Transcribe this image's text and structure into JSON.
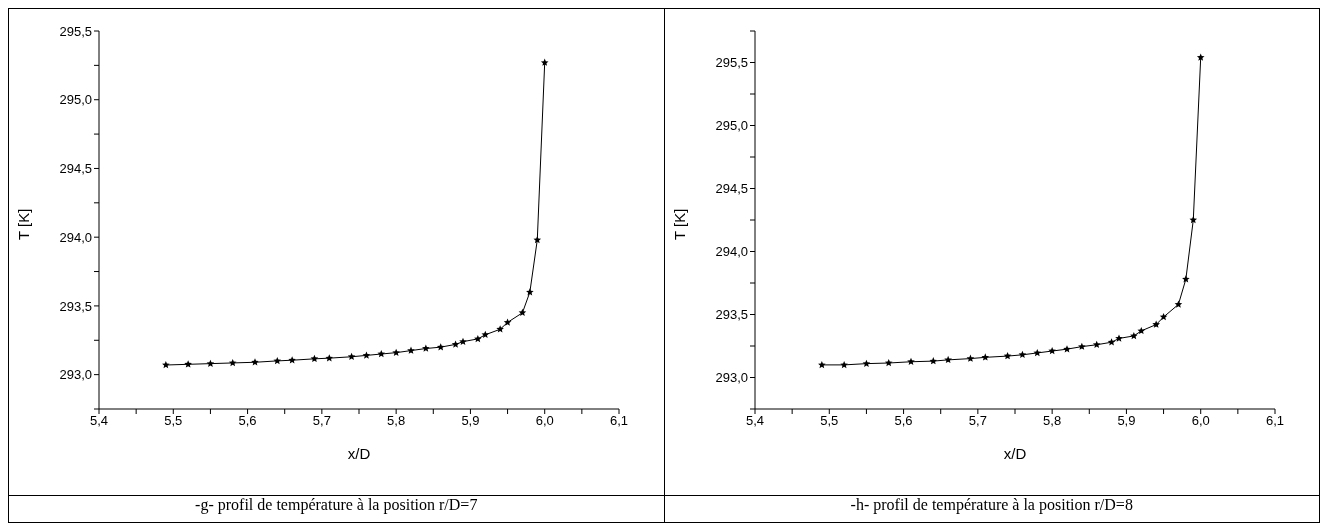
{
  "chart_data": [
    {
      "type": "line",
      "xlabel": "x/D",
      "ylabel": "T [K]",
      "marker": "star",
      "line_style": "solid",
      "grid": false,
      "legend": false,
      "annotations": [
        "-g- profil de température à la position r/D=7"
      ],
      "xlim": [
        5.4,
        6.1
      ],
      "xticks": [
        {
          "value": 5.4,
          "label": "5,4"
        },
        {
          "value": 5.45,
          "label": null
        },
        {
          "value": 5.5,
          "label": "5,5"
        },
        {
          "value": 5.55,
          "label": null
        },
        {
          "value": 5.6,
          "label": "5,6"
        },
        {
          "value": 5.65,
          "label": null
        },
        {
          "value": 5.7,
          "label": "5,7"
        },
        {
          "value": 5.75,
          "label": null
        },
        {
          "value": 5.8,
          "label": "5,8"
        },
        {
          "value": 5.85,
          "label": null
        },
        {
          "value": 5.9,
          "label": "5,9"
        },
        {
          "value": 5.95,
          "label": null
        },
        {
          "value": 6.0,
          "label": "6,0"
        },
        {
          "value": 6.05,
          "label": null
        },
        {
          "value": 6.1,
          "label": "6,1"
        }
      ],
      "ylim": [
        292.75,
        295.5
      ],
      "yticks": [
        {
          "value": 292.75,
          "label": null
        },
        {
          "value": 293.0,
          "label": "293,0"
        },
        {
          "value": 293.25,
          "label": null
        },
        {
          "value": 293.5,
          "label": "293,5"
        },
        {
          "value": 293.75,
          "label": null
        },
        {
          "value": 294.0,
          "label": "294,0"
        },
        {
          "value": 294.25,
          "label": null
        },
        {
          "value": 294.5,
          "label": "294,5"
        },
        {
          "value": 294.75,
          "label": null
        },
        {
          "value": 295.0,
          "label": "295,0"
        },
        {
          "value": 295.25,
          "label": null
        },
        {
          "value": 295.5,
          "label": "295,5"
        }
      ],
      "x": [
        5.49,
        5.52,
        5.55,
        5.58,
        5.61,
        5.64,
        5.66,
        5.69,
        5.71,
        5.74,
        5.76,
        5.78,
        5.8,
        5.82,
        5.84,
        5.86,
        5.88,
        5.89,
        5.91,
        5.92,
        5.94,
        5.95,
        5.97,
        5.98,
        5.99,
        6.0
      ],
      "series": [
        {
          "color": "#000000",
          "values": [
            293.07,
            293.075,
            293.08,
            293.085,
            293.09,
            293.1,
            293.105,
            293.115,
            293.12,
            293.13,
            293.14,
            293.15,
            293.16,
            293.175,
            293.19,
            293.2,
            293.22,
            293.24,
            293.26,
            293.29,
            293.33,
            293.38,
            293.45,
            293.6,
            293.98,
            295.27
          ]
        }
      ]
    },
    {
      "type": "line",
      "xlabel": "x/D",
      "ylabel": "T [K]",
      "marker": "star",
      "line_style": "solid",
      "grid": false,
      "legend": false,
      "annotations": [
        "-h- profil de température à la position r/D=8"
      ],
      "xlim": [
        5.4,
        6.1
      ],
      "xticks": [
        {
          "value": 5.4,
          "label": "5,4"
        },
        {
          "value": 5.45,
          "label": null
        },
        {
          "value": 5.5,
          "label": "5,5"
        },
        {
          "value": 5.55,
          "label": null
        },
        {
          "value": 5.6,
          "label": "5,6"
        },
        {
          "value": 5.65,
          "label": null
        },
        {
          "value": 5.7,
          "label": "5,7"
        },
        {
          "value": 5.75,
          "label": null
        },
        {
          "value": 5.8,
          "label": "5,8"
        },
        {
          "value": 5.85,
          "label": null
        },
        {
          "value": 5.9,
          "label": "5,9"
        },
        {
          "value": 5.95,
          "label": null
        },
        {
          "value": 6.0,
          "label": "6,0"
        },
        {
          "value": 6.05,
          "label": null
        },
        {
          "value": 6.1,
          "label": "6,1"
        }
      ],
      "ylim": [
        292.75,
        295.75
      ],
      "yticks": [
        {
          "value": 292.75,
          "label": null
        },
        {
          "value": 293.0,
          "label": "293,0"
        },
        {
          "value": 293.25,
          "label": null
        },
        {
          "value": 293.5,
          "label": "293,5"
        },
        {
          "value": 293.75,
          "label": null
        },
        {
          "value": 294.0,
          "label": "294,0"
        },
        {
          "value": 294.25,
          "label": null
        },
        {
          "value": 294.5,
          "label": "294,5"
        },
        {
          "value": 294.75,
          "label": null
        },
        {
          "value": 295.0,
          "label": "295,0"
        },
        {
          "value": 295.25,
          "label": null
        },
        {
          "value": 295.5,
          "label": "295,5"
        },
        {
          "value": 295.75,
          "label": null
        }
      ],
      "x": [
        5.49,
        5.52,
        5.55,
        5.58,
        5.61,
        5.64,
        5.66,
        5.69,
        5.71,
        5.74,
        5.76,
        5.78,
        5.8,
        5.82,
        5.84,
        5.86,
        5.88,
        5.89,
        5.91,
        5.92,
        5.94,
        5.95,
        5.97,
        5.98,
        5.99,
        6.0
      ],
      "series": [
        {
          "color": "#000000",
          "values": [
            293.1,
            293.1,
            293.11,
            293.115,
            293.125,
            293.13,
            293.14,
            293.15,
            293.16,
            293.17,
            293.18,
            293.195,
            293.21,
            293.225,
            293.245,
            293.26,
            293.28,
            293.31,
            293.33,
            293.37,
            293.42,
            293.48,
            293.58,
            293.78,
            294.25,
            295.54
          ]
        }
      ]
    }
  ]
}
